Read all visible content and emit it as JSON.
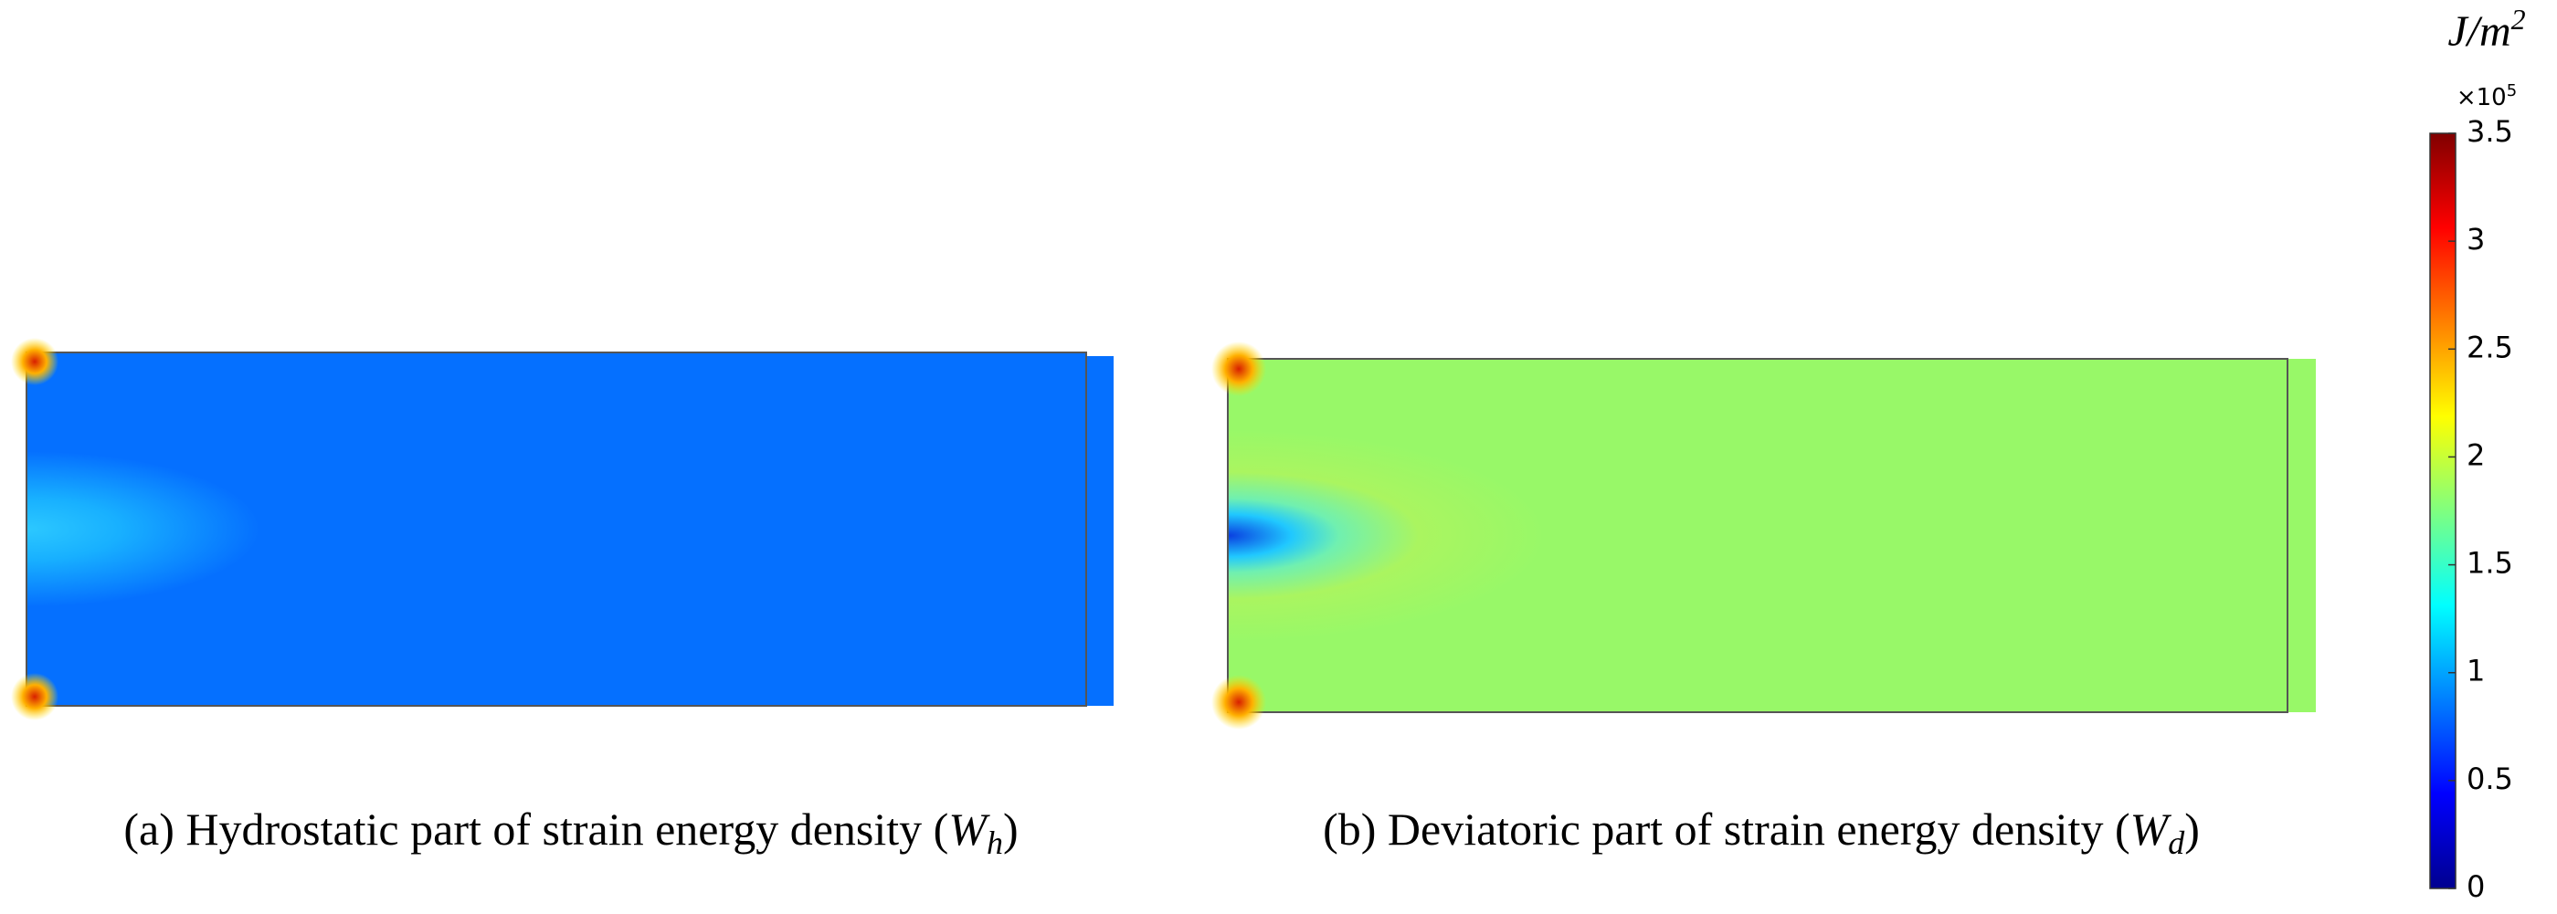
{
  "panels": [
    {
      "caption": {
        "text": "(a) Hydrostatic part of strain energy density (",
        "symbol": "W",
        "subscript": "h",
        "close": ")"
      }
    },
    {
      "caption": {
        "text": "(b) Deviatoric part of strain energy density (",
        "symbol": "W",
        "subscript": "d",
        "close": ")"
      }
    }
  ],
  "colorbar": {
    "unit": "J/m",
    "unit_power": "2",
    "multiplier": "×10",
    "multiplier_power": "5",
    "range": [
      0,
      3.5
    ],
    "ticks": [
      0,
      0.5,
      1,
      1.5,
      2,
      2.5,
      3,
      3.5
    ]
  }
}
